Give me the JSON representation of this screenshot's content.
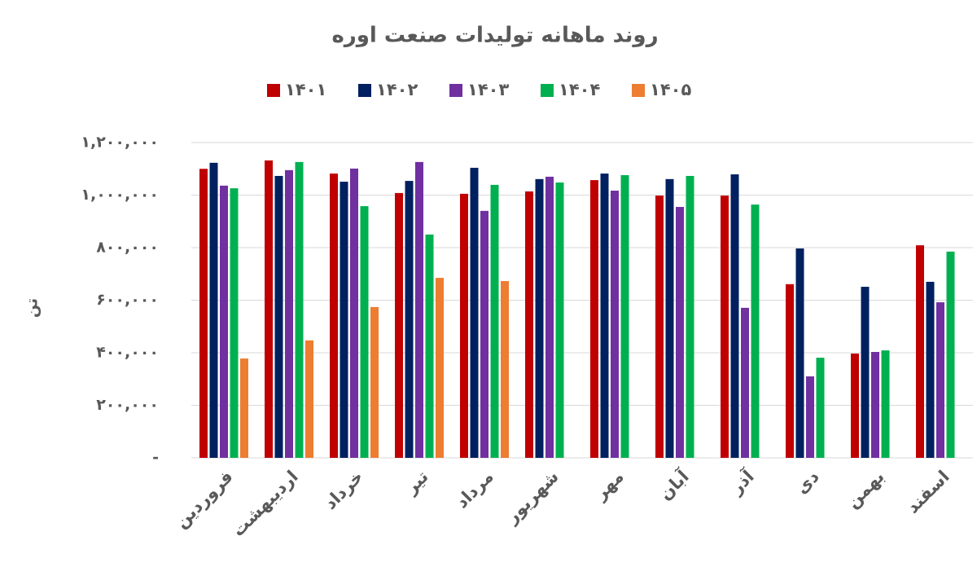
{
  "chart_data": {
    "type": "bar",
    "title": "روند ماهانه تولیدات صنعت اوره",
    "y_label": "تن",
    "categories": [
      "فروردین",
      "اردیبهشت",
      "خرداد",
      "تیر",
      "مرداد",
      "شهریور",
      "مهر",
      "آبان",
      "آذر",
      "دی",
      "بهمن",
      "اسفند"
    ],
    "series": [
      {
        "name": "۱۴۰۱",
        "color": "#c00000",
        "values": [
          1100000,
          1132000,
          1082000,
          1008000,
          1005000,
          1014000,
          1057000,
          998000,
          998000,
          661000,
          397000,
          809000
        ]
      },
      {
        "name": "۱۴۰۲",
        "color": "#002060",
        "values": [
          1123000,
          1073000,
          1051000,
          1054000,
          1104000,
          1061000,
          1082000,
          1061000,
          1079000,
          797000,
          651000,
          670000
        ]
      },
      {
        "name": "۱۴۰۳",
        "color": "#7030a0",
        "values": [
          1036000,
          1095000,
          1101000,
          1126000,
          940000,
          1070000,
          1017000,
          955000,
          571000,
          310000,
          403000,
          592000
        ]
      },
      {
        "name": "۱۴۰۴",
        "color": "#00b050",
        "values": [
          1026000,
          1126000,
          958000,
          850000,
          1039000,
          1048000,
          1076000,
          1073000,
          964000,
          381000,
          409000,
          785000
        ]
      },
      {
        "name": "۱۴۰۵",
        "color": "#ed7d31",
        "values": [
          378000,
          447000,
          574000,
          685000,
          673000,
          null,
          null,
          null,
          null,
          null,
          null,
          null
        ]
      }
    ],
    "ylim": [
      0,
      1200000
    ],
    "yticks": [
      {
        "value": 0,
        "label": "-"
      },
      {
        "value": 200000,
        "label": "۲۰۰,۰۰۰"
      },
      {
        "value": 400000,
        "label": "۴۰۰,۰۰۰"
      },
      {
        "value": 600000,
        "label": "۶۰۰,۰۰۰"
      },
      {
        "value": 800000,
        "label": "۸۰۰,۰۰۰"
      },
      {
        "value": 1000000,
        "label": "۱,۰۰۰,۰۰۰"
      },
      {
        "value": 1200000,
        "label": "۱,۲۰۰,۰۰۰"
      }
    ],
    "grid": true
  }
}
